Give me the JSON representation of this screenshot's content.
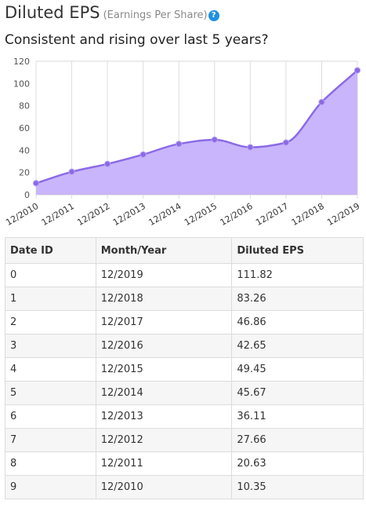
{
  "header": {
    "title": "Diluted EPS",
    "subtitle": "(Earnings Per Share)",
    "help_icon": "question-circle-icon",
    "question": "Consistent and rising over last 5 years?"
  },
  "colors": {
    "line": "#8b6ae6",
    "fill": "#c9b5fb",
    "marker": "#8b6ae6",
    "help_icon": "#1f90df"
  },
  "chart_data": {
    "type": "area",
    "categories": [
      "12/2010",
      "12/2011",
      "12/2012",
      "12/2013",
      "12/2014",
      "12/2015",
      "12/2016",
      "12/2017",
      "12/2018",
      "12/2019"
    ],
    "series": [
      {
        "values": [
          10.35,
          20.63,
          27.66,
          36.11,
          45.67,
          49.45,
          42.65,
          46.86,
          83.26,
          111.82
        ]
      }
    ],
    "ylim": [
      0,
      120
    ],
    "yticks": [
      0,
      20,
      40,
      60,
      80,
      100,
      120
    ],
    "grid": "vertical",
    "smooth": true,
    "markers": true
  },
  "table": {
    "headers": [
      "Date ID",
      "Month/Year",
      "Diluted EPS"
    ],
    "rows": [
      [
        "0",
        "12/2019",
        "111.82"
      ],
      [
        "1",
        "12/2018",
        "83.26"
      ],
      [
        "2",
        "12/2017",
        "46.86"
      ],
      [
        "3",
        "12/2016",
        "42.65"
      ],
      [
        "4",
        "12/2015",
        "49.45"
      ],
      [
        "5",
        "12/2014",
        "45.67"
      ],
      [
        "6",
        "12/2013",
        "36.11"
      ],
      [
        "7",
        "12/2012",
        "27.66"
      ],
      [
        "8",
        "12/2011",
        "20.63"
      ],
      [
        "9",
        "12/2010",
        "10.35"
      ]
    ]
  }
}
